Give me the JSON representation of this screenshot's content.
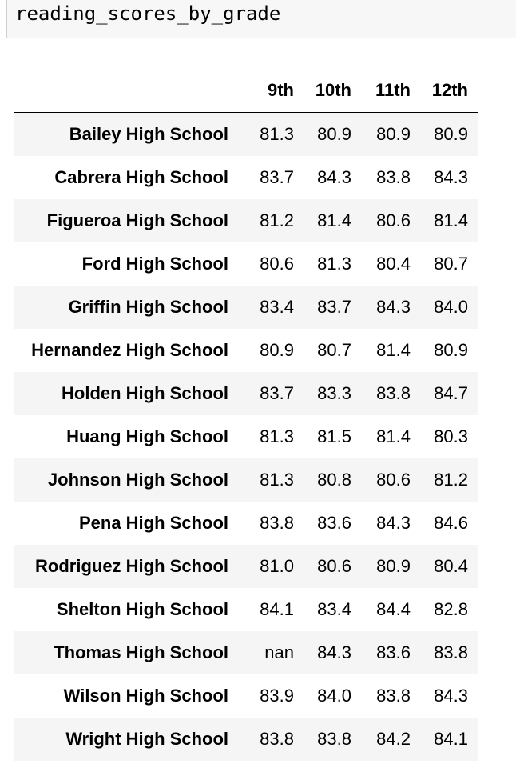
{
  "code_cell": {
    "text": "reading_scores_by_grade"
  },
  "table": {
    "columns": [
      "9th",
      "10th",
      "11th",
      "12th"
    ],
    "rows": [
      {
        "label": "Bailey High School",
        "values": [
          "81.3",
          "80.9",
          "80.9",
          "80.9"
        ]
      },
      {
        "label": "Cabrera High School",
        "values": [
          "83.7",
          "84.3",
          "83.8",
          "84.3"
        ]
      },
      {
        "label": "Figueroa High School",
        "values": [
          "81.2",
          "81.4",
          "80.6",
          "81.4"
        ]
      },
      {
        "label": "Ford High School",
        "values": [
          "80.6",
          "81.3",
          "80.4",
          "80.7"
        ]
      },
      {
        "label": "Griffin High School",
        "values": [
          "83.4",
          "83.7",
          "84.3",
          "84.0"
        ]
      },
      {
        "label": "Hernandez High School",
        "values": [
          "80.9",
          "80.7",
          "81.4",
          "80.9"
        ]
      },
      {
        "label": "Holden High School",
        "values": [
          "83.7",
          "83.3",
          "83.8",
          "84.7"
        ]
      },
      {
        "label": "Huang High School",
        "values": [
          "81.3",
          "81.5",
          "81.4",
          "80.3"
        ]
      },
      {
        "label": "Johnson High School",
        "values": [
          "81.3",
          "80.8",
          "80.6",
          "81.2"
        ]
      },
      {
        "label": "Pena High School",
        "values": [
          "83.8",
          "83.6",
          "84.3",
          "84.6"
        ]
      },
      {
        "label": "Rodriguez High School",
        "values": [
          "81.0",
          "80.6",
          "80.9",
          "80.4"
        ]
      },
      {
        "label": "Shelton High School",
        "values": [
          "84.1",
          "83.4",
          "84.4",
          "82.8"
        ]
      },
      {
        "label": "Thomas High School",
        "values": [
          "nan",
          "84.3",
          "83.6",
          "83.8"
        ]
      },
      {
        "label": "Wilson High School",
        "values": [
          "83.9",
          "84.0",
          "83.8",
          "84.3"
        ]
      },
      {
        "label": "Wright High School",
        "values": [
          "83.8",
          "83.8",
          "84.2",
          "84.1"
        ]
      }
    ]
  }
}
